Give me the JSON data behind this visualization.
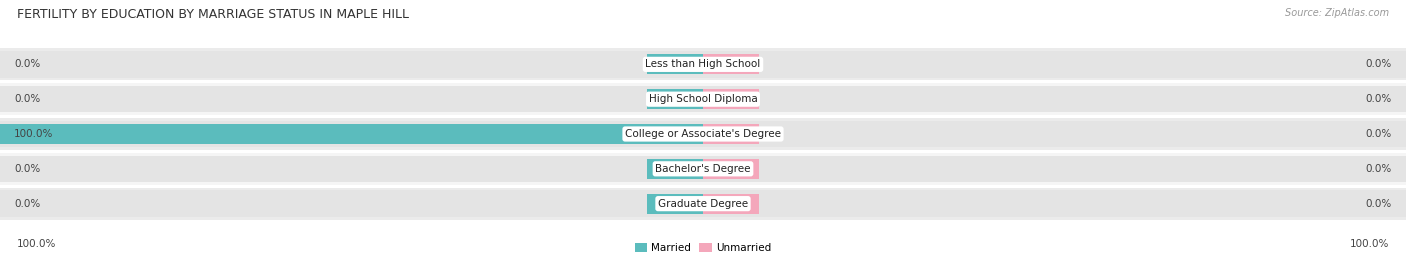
{
  "title": "FERTILITY BY EDUCATION BY MARRIAGE STATUS IN MAPLE HILL",
  "source": "Source: ZipAtlas.com",
  "categories": [
    "Less than High School",
    "High School Diploma",
    "College or Associate's Degree",
    "Bachelor's Degree",
    "Graduate Degree"
  ],
  "married_values": [
    0.0,
    0.0,
    100.0,
    0.0,
    0.0
  ],
  "unmarried_values": [
    0.0,
    0.0,
    0.0,
    0.0,
    0.0
  ],
  "married_color": "#5bbcbd",
  "unmarried_color": "#f4a7bb",
  "bar_bg_color": "#e4e4e4",
  "row_bg_odd": "#ebebeb",
  "row_bg_even": "#f5f5f5",
  "title_fontsize": 9,
  "source_fontsize": 7,
  "label_fontsize": 7.5,
  "cat_fontsize": 7.5,
  "xlim_left": -100,
  "xlim_right": 100,
  "left_axis_label": "100.0%",
  "right_axis_label": "100.0%",
  "stub_size": 8,
  "legend_married": "Married",
  "legend_unmarried": "Unmarried"
}
